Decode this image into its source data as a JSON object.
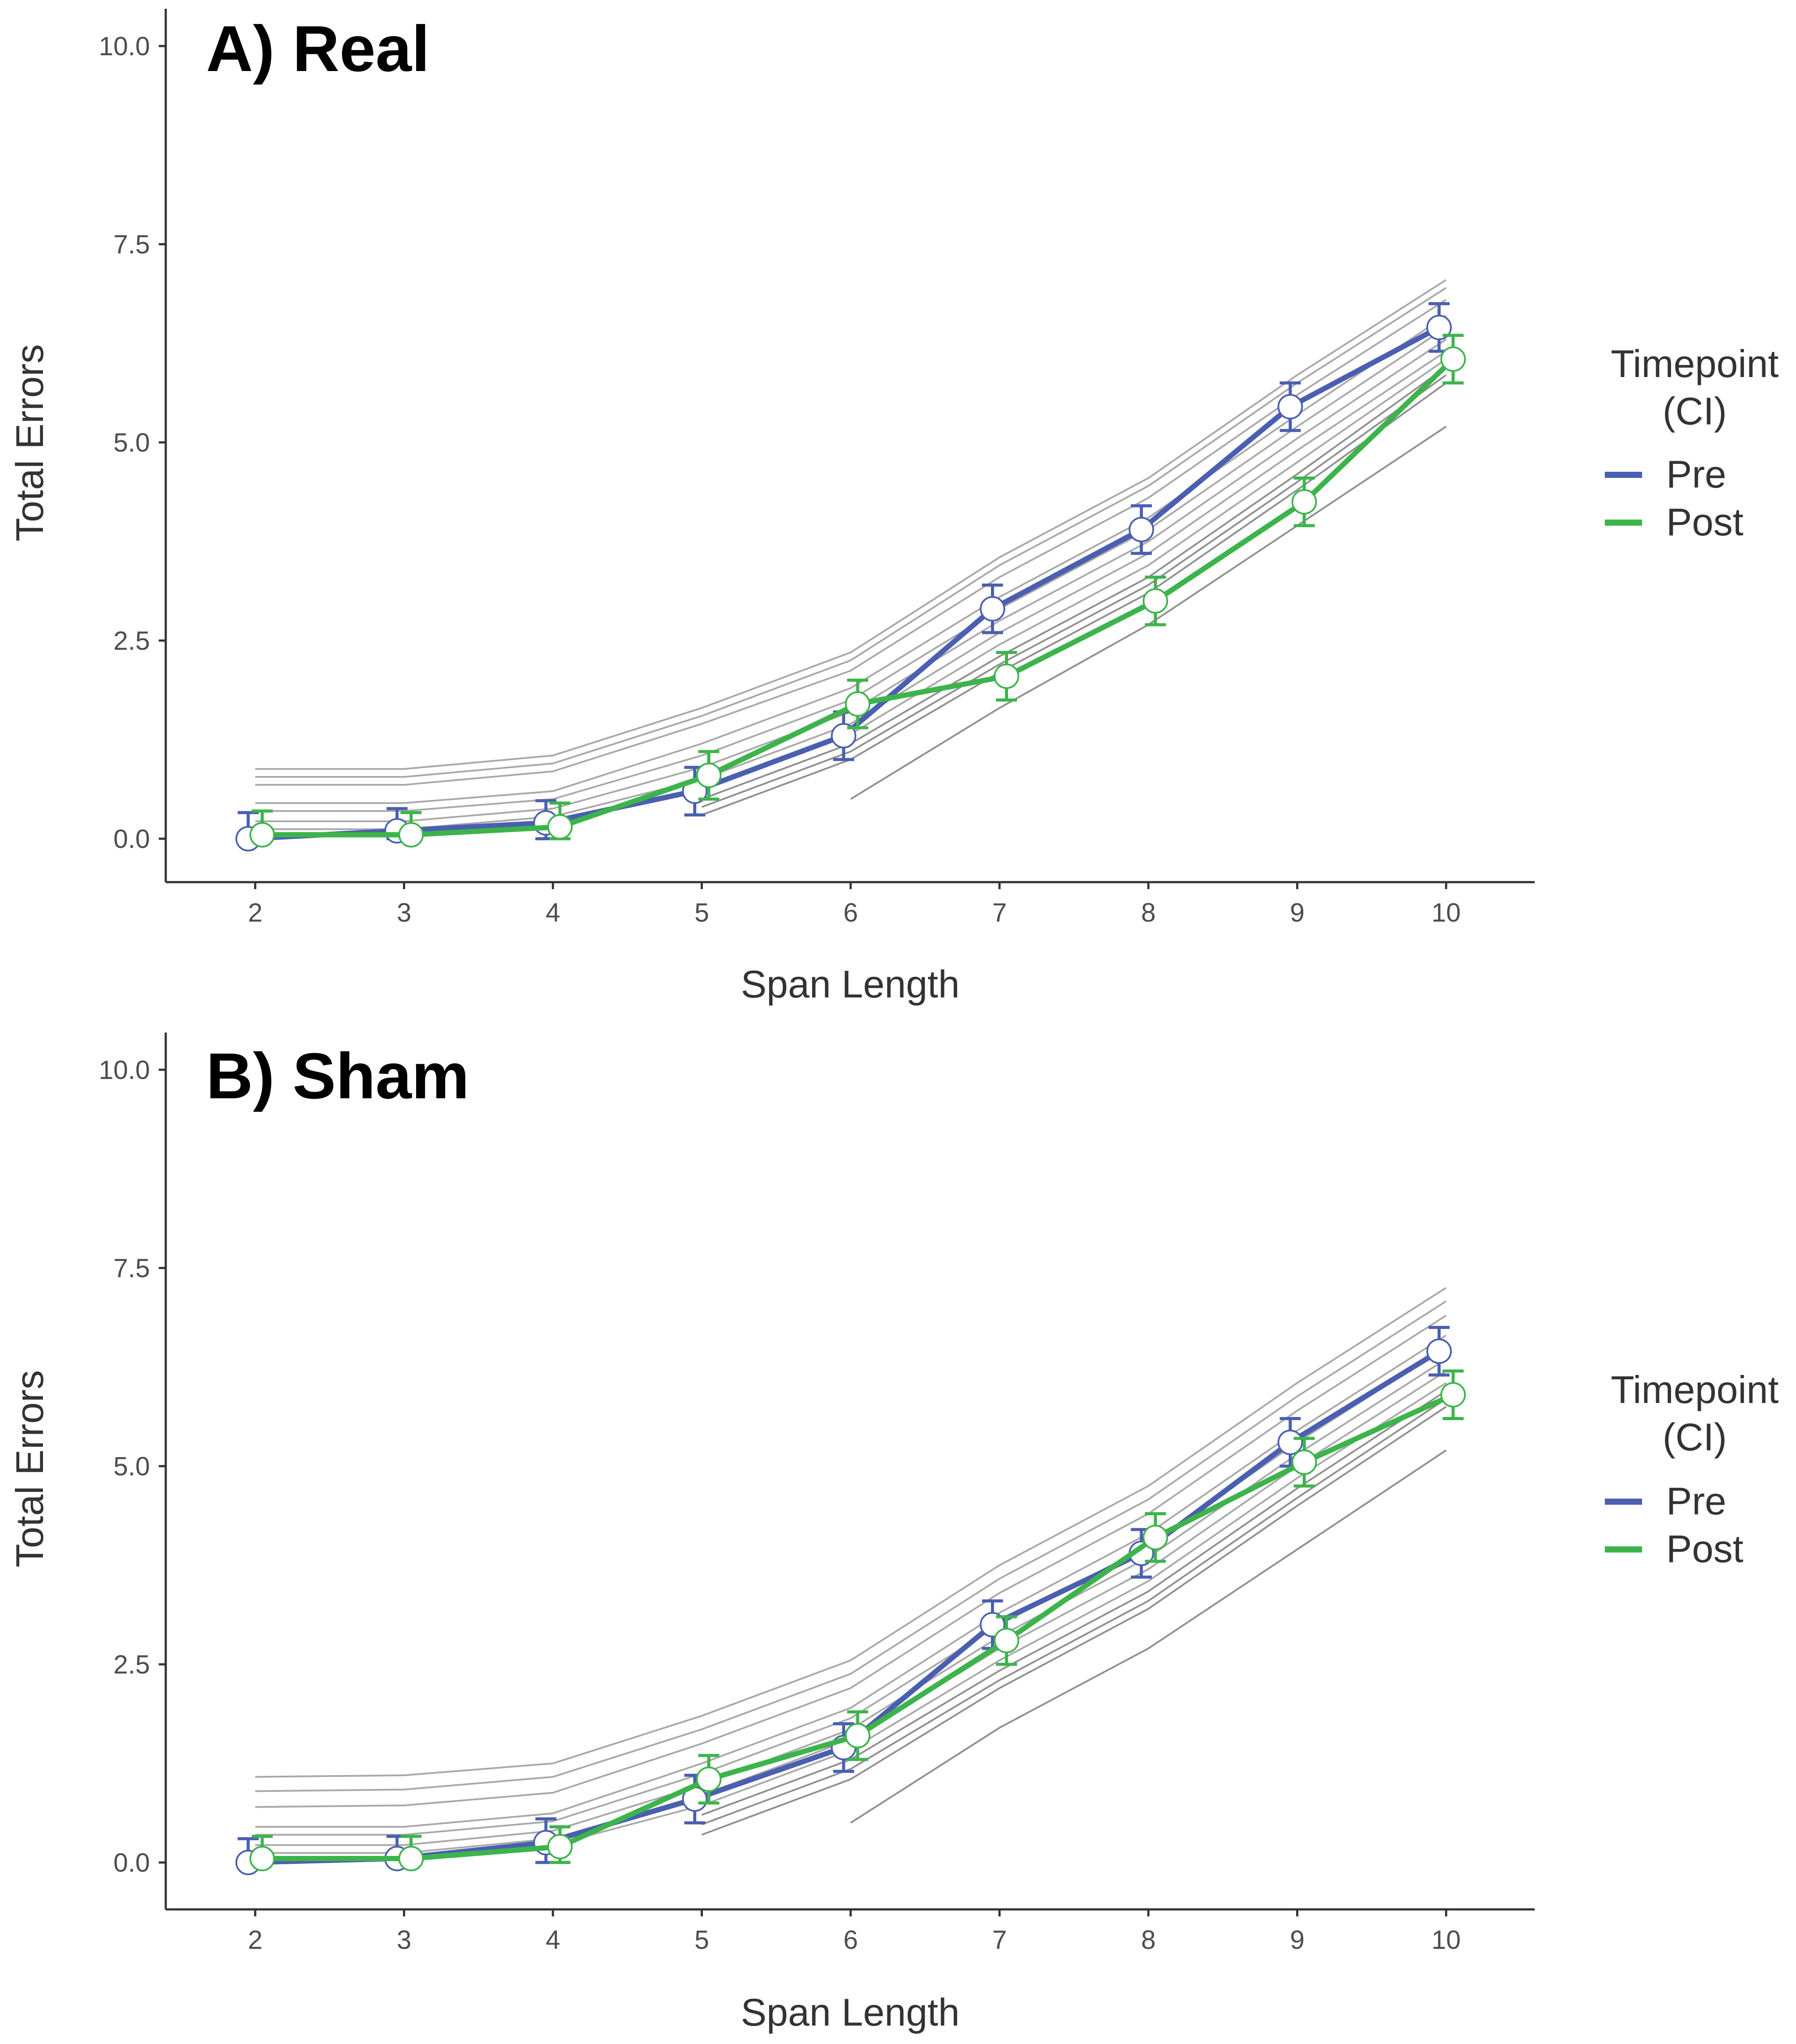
{
  "chart_data": [
    {
      "type": "line",
      "title": "A) Real",
      "xlabel": "Span Length",
      "ylabel": "Total Errors",
      "x": [
        2,
        3,
        4,
        5,
        6,
        7,
        8,
        9,
        10
      ],
      "xticks": [
        "2",
        "3",
        "4",
        "5",
        "6",
        "7",
        "8",
        "9",
        "10"
      ],
      "ylim": [
        -0.5,
        10.5
      ],
      "yticks": [
        "0.0",
        "2.5",
        "5.0",
        "7.5",
        "10.0"
      ],
      "legend": {
        "title_line1": "Timepoint",
        "title_line2": "(CI)",
        "position": "right"
      },
      "series": [
        {
          "name": "Pre",
          "color": "#4a5fb0",
          "values": [
            0.0,
            0.1,
            0.2,
            0.6,
            1.3,
            2.9,
            3.9,
            5.45,
            6.45
          ],
          "ci_low": [
            0.0,
            0.0,
            0.0,
            0.3,
            1.0,
            2.6,
            3.6,
            5.15,
            6.15
          ],
          "ci_high": [
            0.33,
            0.38,
            0.48,
            0.9,
            1.6,
            3.2,
            4.2,
            5.75,
            6.75
          ]
        },
        {
          "name": "Post",
          "color": "#3cb44b",
          "values": [
            0.05,
            0.05,
            0.15,
            0.8,
            1.7,
            2.05,
            3.0,
            4.25,
            6.05
          ],
          "ci_low": [
            0.0,
            0.0,
            0.0,
            0.5,
            1.4,
            1.75,
            2.7,
            3.95,
            5.75
          ],
          "ci_high": [
            0.35,
            0.33,
            0.45,
            1.1,
            2.0,
            2.35,
            3.3,
            4.55,
            6.35
          ]
        }
      ],
      "reference_lines": [
        {
          "x": [
            2,
            3,
            4,
            5,
            6,
            7,
            8,
            9,
            10
          ],
          "y": [
            0.88,
            0.88,
            1.05,
            1.65,
            2.35,
            3.55,
            4.55,
            5.85,
            7.05
          ]
        },
        {
          "x": [
            2,
            3,
            4,
            5,
            6,
            7,
            8,
            9,
            10
          ],
          "y": [
            0.78,
            0.78,
            0.95,
            1.55,
            2.25,
            3.45,
            4.45,
            5.75,
            6.95
          ]
        },
        {
          "x": [
            2,
            3,
            4,
            5,
            6,
            7,
            8,
            9,
            10
          ],
          "y": [
            0.68,
            0.68,
            0.85,
            1.45,
            2.12,
            3.3,
            4.3,
            5.6,
            6.8
          ]
        },
        {
          "x": [
            2,
            3,
            4,
            5,
            6,
            7,
            8,
            9,
            10
          ],
          "y": [
            0.45,
            0.45,
            0.6,
            1.2,
            1.9,
            3.05,
            4.05,
            5.35,
            6.6
          ]
        },
        {
          "x": [
            2,
            3,
            4,
            5,
            6,
            7,
            8,
            9,
            10
          ],
          "y": [
            0.35,
            0.35,
            0.5,
            1.05,
            1.75,
            2.9,
            3.9,
            5.2,
            6.45
          ]
        },
        {
          "x": [
            2,
            3,
            4,
            5,
            6,
            7,
            8,
            9,
            10
          ],
          "y": [
            0.22,
            0.22,
            0.38,
            0.9,
            1.6,
            2.75,
            3.75,
            5.05,
            6.3
          ]
        },
        {
          "x": [
            2,
            3,
            4,
            5,
            6,
            7,
            8,
            9,
            10
          ],
          "y": [
            0.12,
            0.12,
            0.28,
            0.75,
            1.45,
            2.6,
            3.6,
            4.9,
            6.15
          ]
        },
        {
          "x": [
            2,
            3,
            4,
            5,
            6,
            7,
            8,
            9,
            10
          ],
          "y": [
            0.05,
            0.05,
            0.2,
            0.62,
            1.32,
            2.45,
            3.45,
            4.75,
            6.05
          ]
        },
        {
          "x": [
            5,
            6,
            7,
            8,
            9,
            10
          ],
          "y": [
            0.5,
            1.2,
            2.3,
            3.3,
            4.6,
            5.95
          ]
        },
        {
          "x": [
            5,
            6,
            7,
            8,
            9,
            10
          ],
          "y": [
            0.4,
            1.1,
            2.2,
            3.2,
            4.5,
            5.85
          ]
        },
        {
          "x": [
            5,
            6,
            7,
            8,
            9,
            10
          ],
          "y": [
            0.3,
            1.0,
            2.1,
            3.1,
            4.4,
            5.75
          ]
        },
        {
          "x": [
            6,
            7,
            8,
            9,
            10
          ],
          "y": [
            0.5,
            1.65,
            2.7,
            3.95,
            5.2
          ]
        }
      ]
    },
    {
      "type": "line",
      "title": "B) Sham",
      "xlabel": "Span Length",
      "ylabel": "Total Errors",
      "x": [
        2,
        3,
        4,
        5,
        6,
        7,
        8,
        9,
        10
      ],
      "xticks": [
        "2",
        "3",
        "4",
        "5",
        "6",
        "7",
        "8",
        "9",
        "10"
      ],
      "ylim": [
        -0.5,
        10.5
      ],
      "yticks": [
        "0.0",
        "2.5",
        "5.0",
        "7.5",
        "10.0"
      ],
      "legend": {
        "title_line1": "Timepoint",
        "title_line2": "(CI)",
        "position": "right"
      },
      "series": [
        {
          "name": "Pre",
          "color": "#4a5fb0",
          "values": [
            0.0,
            0.05,
            0.25,
            0.8,
            1.45,
            3.0,
            3.9,
            5.3,
            6.45
          ],
          "ci_low": [
            0.0,
            0.0,
            0.0,
            0.5,
            1.15,
            2.7,
            3.6,
            5.0,
            6.15
          ],
          "ci_high": [
            0.3,
            0.33,
            0.55,
            1.1,
            1.75,
            3.3,
            4.2,
            5.6,
            6.75
          ]
        },
        {
          "name": "Post",
          "color": "#3cb44b",
          "values": [
            0.05,
            0.05,
            0.2,
            1.05,
            1.6,
            2.8,
            4.1,
            5.05,
            5.9
          ],
          "ci_low": [
            0.0,
            0.0,
            0.0,
            0.75,
            1.3,
            2.5,
            3.8,
            4.75,
            5.6
          ],
          "ci_high": [
            0.33,
            0.33,
            0.45,
            1.35,
            1.9,
            3.1,
            4.4,
            5.35,
            6.2
          ]
        }
      ],
      "reference_lines": [
        {
          "x": [
            2,
            3,
            4,
            5,
            6,
            7,
            8,
            9,
            10
          ],
          "y": [
            1.08,
            1.1,
            1.25,
            1.85,
            2.55,
            3.75,
            4.75,
            6.05,
            7.25
          ]
        },
        {
          "x": [
            2,
            3,
            4,
            5,
            6,
            7,
            8,
            9,
            10
          ],
          "y": [
            0.9,
            0.92,
            1.08,
            1.68,
            2.38,
            3.58,
            4.58,
            5.88,
            7.08
          ]
        },
        {
          "x": [
            2,
            3,
            4,
            5,
            6,
            7,
            8,
            9,
            10
          ],
          "y": [
            0.7,
            0.72,
            0.88,
            1.5,
            2.2,
            3.4,
            4.4,
            5.7,
            6.9
          ]
        },
        {
          "x": [
            2,
            3,
            4,
            5,
            6,
            7,
            8,
            9,
            10
          ],
          "y": [
            0.45,
            0.45,
            0.62,
            1.25,
            1.95,
            3.15,
            4.15,
            5.45,
            6.65
          ]
        },
        {
          "x": [
            2,
            3,
            4,
            5,
            6,
            7,
            8,
            9,
            10
          ],
          "y": [
            0.35,
            0.35,
            0.52,
            1.12,
            1.82,
            3.0,
            4.0,
            5.3,
            6.5
          ]
        },
        {
          "x": [
            2,
            3,
            4,
            5,
            6,
            7,
            8,
            9,
            10
          ],
          "y": [
            0.22,
            0.22,
            0.4,
            0.98,
            1.68,
            2.85,
            3.85,
            5.15,
            6.35
          ]
        },
        {
          "x": [
            2,
            3,
            4,
            5,
            6,
            7,
            8,
            9,
            10
          ],
          "y": [
            0.12,
            0.12,
            0.3,
            0.85,
            1.55,
            2.7,
            3.7,
            5.0,
            6.2
          ]
        },
        {
          "x": [
            2,
            3,
            4,
            5,
            6,
            7,
            8,
            9,
            10
          ],
          "y": [
            0.05,
            0.05,
            0.22,
            0.72,
            1.42,
            2.55,
            3.55,
            4.85,
            6.05
          ]
        },
        {
          "x": [
            5,
            6,
            7,
            8,
            9,
            10
          ],
          "y": [
            0.6,
            1.3,
            2.42,
            3.42,
            4.72,
            5.95
          ]
        },
        {
          "x": [
            5,
            6,
            7,
            8,
            9,
            10
          ],
          "y": [
            0.48,
            1.18,
            2.3,
            3.3,
            4.6,
            5.85
          ]
        },
        {
          "x": [
            5,
            6,
            7,
            8,
            9,
            10
          ],
          "y": [
            0.35,
            1.05,
            2.2,
            3.2,
            4.5,
            5.75
          ]
        },
        {
          "x": [
            6,
            7,
            8,
            9,
            10
          ],
          "y": [
            0.5,
            1.7,
            2.7,
            3.95,
            5.2
          ]
        }
      ]
    }
  ]
}
